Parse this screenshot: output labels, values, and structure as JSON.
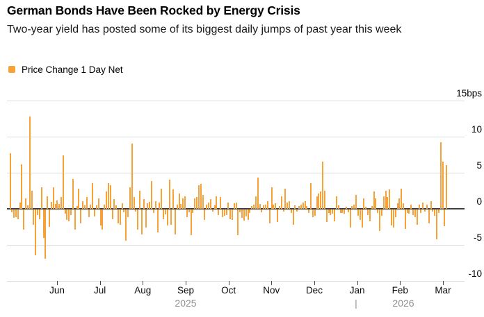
{
  "chart_data": {
    "type": "bar",
    "title": "German Bonds Have Been Rocked by Energy Crisis",
    "subtitle": "Two-year yield has posted some of its biggest daily jumps of past year this week",
    "legend_label": "Price Change 1 Day Net",
    "unit": "bps",
    "colors": {
      "bar": "#F7A139",
      "grid": "#DBDBDB",
      "zero_line": "#3D3D3D",
      "axis_text": "#000000",
      "year_text": "#8F8F8F"
    },
    "y_axis": {
      "position": "right",
      "range": [
        -10,
        15
      ],
      "gridlines": true,
      "ticks": [
        {
          "value": 15,
          "label": "15bps"
        },
        {
          "value": 10,
          "label": "10"
        },
        {
          "value": 5,
          "label": "5"
        },
        {
          "value": 0,
          "label": "0"
        },
        {
          "value": -5,
          "label": "-5"
        },
        {
          "value": -10,
          "label": "-10"
        }
      ]
    },
    "x_axis": {
      "month_ticks": [
        "Jun",
        "Jul",
        "Aug",
        "Sep",
        "Oct",
        "Nov",
        "Dec",
        "Jan",
        "Feb",
        "Mar"
      ],
      "years": [
        "2025",
        "2026"
      ],
      "year_separator": "|"
    },
    "series": [
      {
        "name": "Price Change 1 Day Net",
        "color": "#F7A139",
        "values": [
          7.7,
          -0.4,
          -1.2,
          -1.1,
          -1.3,
          0.9,
          6.2,
          -2.8,
          1.4,
          0.5,
          12.8,
          2.5,
          -2.1,
          -6.3,
          -0.8,
          -1.3,
          3.0,
          -3.9,
          -6.8,
          1.7,
          -2.4,
          1.0,
          3.0,
          0.7,
          1.2,
          0.7,
          1.6,
          7.4,
          -0.6,
          -1.4,
          -1.6,
          -0.8,
          4.1,
          -2.8,
          0.4,
          2.8,
          -1.9,
          1.1,
          0.5,
          1.6,
          -1.1,
          0.6,
          3.6,
          -1.0,
          0.5,
          1.4,
          -2.2,
          -2.8,
          0.6,
          2.4,
          3.6,
          3.3,
          -1.3,
          1.3,
          0.5,
          -1.9,
          -2.1,
          0.8,
          -0.4,
          -4.3,
          -1.1,
          3.0,
          9.0,
          1.6,
          -0.3,
          -2.8,
          2.5,
          -3.5,
          1.3,
          -2.5,
          0.8,
          1.0,
          3.8,
          -0.5,
          1.1,
          -3.2,
          0.9,
          2.8,
          -1.3,
          -0.7,
          -2.2,
          4.0,
          -2.1,
          2.7,
          -3.5,
          0.6,
          2.1,
          0.7,
          1.4,
          1.7,
          -1.1,
          -0.4,
          -3.6,
          -0.5,
          1.4,
          1.6,
          3.3,
          3.5,
          1.9,
          -1.4,
          0.6,
          0.9,
          1.3,
          -0.3,
          0.5,
          1.7,
          -0.8,
          1.6,
          -1.1,
          -0.9,
          -0.8,
          0.9,
          -1.3,
          -1.4,
          0.8,
          0.9,
          -3.6,
          -0.4,
          -1.2,
          -1.5,
          -1.0,
          -1.4,
          -0.5,
          0.4,
          0.6,
          1.7,
          4.3,
          0.7,
          -0.4,
          0.5,
          0.6,
          1.1,
          -1.9,
          3.0,
          0.6,
          0.8,
          -1.7,
          0.4,
          1.7,
          -0.3,
          2.8,
          0.9,
          1.1,
          -0.5,
          -2.1,
          0.5,
          -0.3,
          0.4,
          0.6,
          0.9,
          1.1,
          0.4,
          -0.5,
          3.6,
          -1.1,
          -0.9,
          1.7,
          2.1,
          2.4,
          6.5,
          2.5,
          -1.7,
          -0.5,
          -0.8,
          -0.6,
          -1.6,
          1.7,
          0.5,
          -0.5,
          -0.5,
          -0.6,
          0.3,
          -0.4,
          -2.5,
          0.4,
          0.6,
          1.9,
          -0.9,
          -1.4,
          -2.5,
          1.4,
          0.3,
          -0.8,
          -1.6,
          0.4,
          2.4,
          1.4,
          -0.5,
          -3.0,
          -0.9,
          1.7,
          2.5,
          1.6,
          2.7,
          -2.2,
          -2.5,
          -1.1,
          0.8,
          1.4,
          2.8,
          0.8,
          -2.7,
          -0.5,
          -0.6,
          0.6,
          -0.8,
          -1.1,
          -2.1,
          0.6,
          -0.5,
          0.9,
          -0.3,
          0.6,
          -1.9,
          1.1,
          -0.3,
          -0.9,
          -4.1,
          -0.5,
          9.2,
          6.5,
          -2.3,
          6.1
        ]
      }
    ]
  }
}
